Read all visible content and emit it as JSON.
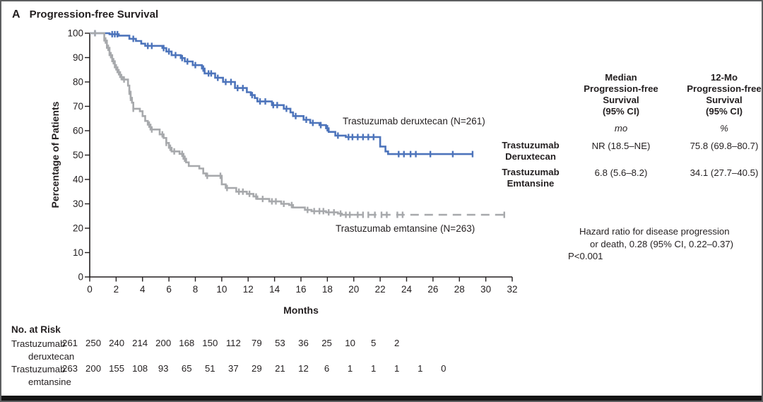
{
  "figure": {
    "panel_label": "A",
    "title": "Progression-free Survival"
  },
  "chart_data": {
    "type": "line",
    "subtype": "kaplan-meier-step",
    "title": "Progression-free Survival",
    "xlabel": "Months",
    "ylabel": "Percentage of Patients",
    "xlim": [
      0,
      32
    ],
    "ylim": [
      0,
      100
    ],
    "xticks": [
      0,
      2,
      4,
      6,
      8,
      10,
      12,
      14,
      16,
      18,
      20,
      22,
      24,
      26,
      28,
      30,
      32
    ],
    "yticks": [
      0,
      10,
      20,
      30,
      40,
      50,
      60,
      70,
      80,
      90,
      100
    ],
    "grid": false,
    "legend_position": "on-curve",
    "series": [
      {
        "name": "Trastuzumab deruxtecan",
        "label": "Trastuzumab deruxtecan (N=261)",
        "n": 261,
        "color": "#4d74bb",
        "dash_from_month": null,
        "points": [
          [
            0,
            100
          ],
          [
            1.4,
            100
          ],
          [
            1.5,
            99.6
          ],
          [
            2.2,
            99
          ],
          [
            3.0,
            97.7
          ],
          [
            3.5,
            96.8
          ],
          [
            3.9,
            95.7
          ],
          [
            4.2,
            94.8
          ],
          [
            5.5,
            93.9
          ],
          [
            5.8,
            92.5
          ],
          [
            6.2,
            91
          ],
          [
            6.9,
            89.8
          ],
          [
            7.2,
            88.4
          ],
          [
            7.8,
            86.9
          ],
          [
            8.5,
            85.5
          ],
          [
            8.7,
            83.5
          ],
          [
            9.5,
            81.7
          ],
          [
            10.1,
            80
          ],
          [
            11,
            77.5
          ],
          [
            11.9,
            75.8
          ],
          [
            12.2,
            74.6
          ],
          [
            12.5,
            73.4
          ],
          [
            12.7,
            72
          ],
          [
            13.8,
            70.5
          ],
          [
            14.7,
            69
          ],
          [
            15.2,
            67.5
          ],
          [
            15.4,
            66
          ],
          [
            16.2,
            64.5
          ],
          [
            16.7,
            63.2
          ],
          [
            17.4,
            62.3
          ],
          [
            17.9,
            61
          ],
          [
            18.1,
            59.5
          ],
          [
            18.6,
            58
          ],
          [
            19.4,
            57.4
          ],
          [
            21.8,
            57.4
          ],
          [
            22,
            53.5
          ],
          [
            22.4,
            51.5
          ],
          [
            22.6,
            50.4
          ],
          [
            29,
            50.4
          ]
        ],
        "censor_months": [
          0.4,
          1.7,
          1.9,
          2.1,
          3.3,
          4.4,
          4.7,
          5.6,
          6.0,
          6.5,
          7.0,
          7.4,
          8.0,
          8.6,
          9.0,
          9.2,
          9.7,
          10.3,
          10.7,
          11.2,
          11.6,
          12.3,
          12.9,
          13.3,
          13.9,
          14.2,
          14.9,
          15.6,
          16.4,
          16.9,
          17.5,
          18.0,
          18.8,
          19.6,
          19.9,
          20.3,
          20.7,
          21.1,
          21.5,
          23.4,
          23.8,
          24.3,
          24.7,
          25.8,
          27.5,
          29.0
        ]
      },
      {
        "name": "Trastuzumab emtansine",
        "label": "Trastuzumab emtansine (N=263)",
        "n": 263,
        "color": "#a7a9ac",
        "dash_from_month": 20,
        "points": [
          [
            0,
            100
          ],
          [
            1.0,
            100
          ],
          [
            1.1,
            97
          ],
          [
            1.3,
            94
          ],
          [
            1.5,
            91
          ],
          [
            1.7,
            88.5
          ],
          [
            1.9,
            86
          ],
          [
            2.1,
            84
          ],
          [
            2.3,
            82
          ],
          [
            2.5,
            81
          ],
          [
            2.9,
            78.5
          ],
          [
            3.0,
            76
          ],
          [
            3.1,
            73.5
          ],
          [
            3.2,
            71.5
          ],
          [
            3.3,
            69
          ],
          [
            3.8,
            68
          ],
          [
            4.0,
            66
          ],
          [
            4.2,
            64
          ],
          [
            4.4,
            62.5
          ],
          [
            4.6,
            60.5
          ],
          [
            5.3,
            58.5
          ],
          [
            5.6,
            57
          ],
          [
            5.8,
            55
          ],
          [
            6.0,
            53
          ],
          [
            6.2,
            51.5
          ],
          [
            6.8,
            50.5
          ],
          [
            7.1,
            48.5
          ],
          [
            7.3,
            47
          ],
          [
            7.5,
            45.5
          ],
          [
            8.3,
            44.5
          ],
          [
            8.6,
            42.5
          ],
          [
            8.8,
            41.5
          ],
          [
            10.0,
            38
          ],
          [
            10.3,
            36.5
          ],
          [
            11.1,
            35
          ],
          [
            11.9,
            34.1
          ],
          [
            12.4,
            33
          ],
          [
            12.7,
            32
          ],
          [
            13.6,
            31
          ],
          [
            14.5,
            30
          ],
          [
            15.1,
            29.5
          ],
          [
            15.4,
            28.5
          ],
          [
            16.3,
            27.5
          ],
          [
            16.8,
            27
          ],
          [
            17.9,
            26.5
          ],
          [
            18.8,
            26
          ],
          [
            19.1,
            25.5
          ],
          [
            31.4,
            25.5
          ]
        ],
        "censor_months": [
          0.4,
          1.2,
          1.4,
          1.6,
          1.8,
          2.0,
          2.2,
          2.4,
          2.6,
          3.0,
          3.1,
          3.3,
          4.5,
          4.7,
          5.5,
          5.8,
          6.1,
          6.4,
          7.0,
          7.2,
          8.9,
          9.9,
          10.4,
          11.3,
          11.6,
          12.1,
          12.6,
          13.1,
          13.8,
          14.1,
          14.7,
          15.3,
          16.5,
          17.0,
          17.4,
          17.7,
          18.1,
          18.5,
          19.0,
          19.4,
          19.7,
          20.3,
          20.7,
          21.1,
          21.6,
          22.1,
          22.5,
          23.3,
          23.7,
          31.4
        ]
      }
    ]
  },
  "summary_table": {
    "col1_header": "Median\nProgression-free\nSurvival\n(95% CI)",
    "col2_header": "12-Mo\nProgression-free\nSurvival\n(95% CI)",
    "col1_unit": "mo",
    "col2_unit": "%",
    "rows": [
      {
        "label": "Trastuzumab\nDeruxtecan",
        "median": "NR (18.5–NE)",
        "twelve_mo": "75.8 (69.8–80.7)"
      },
      {
        "label": "Trastuzumab\nEmtansine",
        "median": "6.8 (5.6–8.2)",
        "twelve_mo": "34.1 (27.7–40.5)"
      }
    ]
  },
  "hazard_note": {
    "line1": "Hazard ratio for disease progression",
    "line2": "or death, 0.28 (95% CI, 0.22–0.37)",
    "line3": "P<0.001"
  },
  "at_risk": {
    "title": "No. at Risk",
    "rows": [
      {
        "label_line1": "Trastuzumab",
        "label_line2": "deruxtecan",
        "values": [
          261,
          250,
          240,
          214,
          200,
          168,
          150,
          112,
          79,
          53,
          36,
          25,
          10,
          5,
          2
        ]
      },
      {
        "label_line1": "Trastuzumab",
        "label_line2": "emtansine",
        "values": [
          263,
          200,
          155,
          108,
          93,
          65,
          51,
          37,
          29,
          21,
          12,
          6,
          1,
          1,
          1,
          1,
          0
        ]
      }
    ]
  },
  "colors": {
    "deruxtecan_blue": "#4d74bb",
    "emtansine_gray": "#a7a9ac",
    "text": "#231f20",
    "frame": "#5d5e60",
    "bottom_bar": "#151515"
  }
}
